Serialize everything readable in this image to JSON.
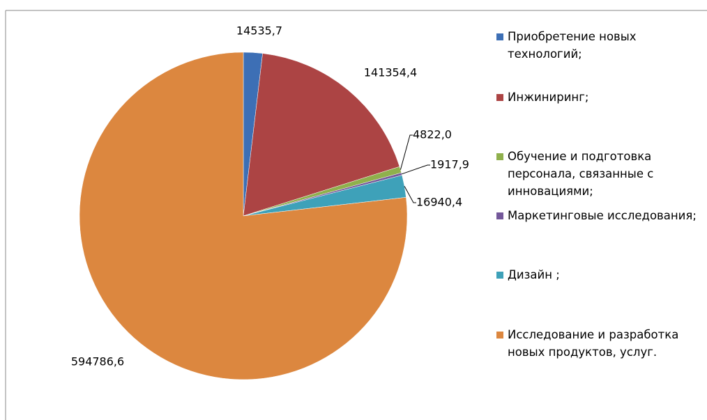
{
  "chart_data": {
    "type": "pie",
    "categories": [
      "Приобретение новых технологий;",
      "Инжиниринг;",
      "Обучение и подготовка персонала, связанные с инновациями;",
      "Маркетинговые исследования;",
      "Дизайн ;",
      "Исследование и разработка новых продуктов, услуг."
    ],
    "values": [
      14535.7,
      141354.4,
      4822.0,
      1917.9,
      16940.4,
      594786.6
    ],
    "value_labels": [
      "14535,7",
      "141354,4",
      "4822,0",
      "1917,9",
      "16940,4",
      "594786,6"
    ],
    "colors": [
      "#3d6fb5",
      "#ac4444",
      "#8fb04c",
      "#74589a",
      "#3ea1b9",
      "#dc873f"
    ],
    "legend": "right"
  }
}
